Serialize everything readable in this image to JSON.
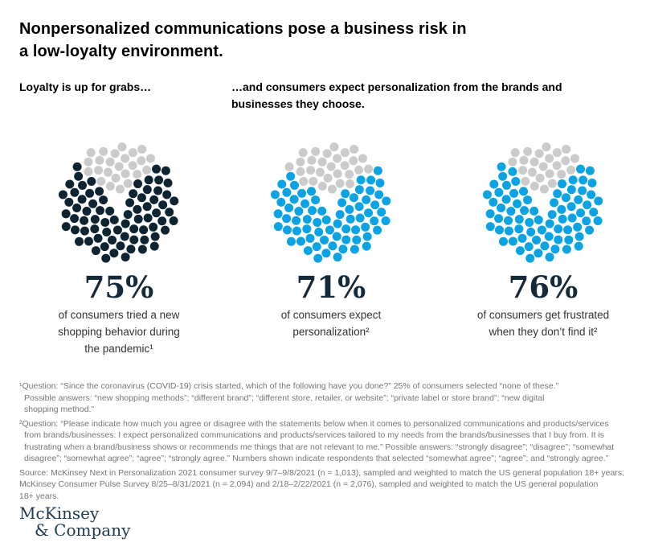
{
  "title": "Nonpersonalized communications pose a business risk in\na low-loyalty environment.",
  "subhead_left": "Loyalty is up for grabs…",
  "subhead_right": "…and consumers expect personalization from the brands and\nbusinesses they choose.",
  "chart_data": {
    "type": "pie",
    "variant": "circular-dot-matrix",
    "total_dots_per_chart": 100,
    "remainder_color": "#cbcbcb",
    "legend_position": "none",
    "charts": [
      {
        "value": 75,
        "display": "75%",
        "caption": "of consumers tried a new\nshopping behavior during\nthe pandemic¹",
        "fill_color": "#0e2433"
      },
      {
        "value": 71,
        "display": "71%",
        "caption": "of consumers expect\npersonalization²",
        "fill_color": "#0ba3e3"
      },
      {
        "value": 76,
        "display": "76%",
        "caption": "of consumers get frustrated\nwhen they don’t find it²",
        "fill_color": "#0ba3e3"
      }
    ]
  },
  "footnotes": [
    "¹Question: “Since the coronavirus (COVID-19) crisis started, which of the following have you done?” 25% of consumers selected “none of these.”\nPossible answers: “new shopping methods”; “different brand”; “different store, retailer, or website”; “private label or store brand”; “new digital\nshopping method.”",
    "²Question: “Please indicate how much you agree or disagree with the statements below when it comes to personalized communications and products/services\nfrom brands/businesses: I expect personalized communications and products/services tailored to my needs from the brands/businesses that I buy from. It is\nfrustrating when a brand/business shows or recommends me things that are not relevant to me.” Possible answers: “strongly disagree”; “disagree”; “somewhat\ndisagree”; “somewhat agree”; “agree”; “strongly agree.” Numbers shown indicate respondents that selected “somewhat agree”; “agree”; and “strongly agree.”"
  ],
  "source": "Source: McKinsey Next in Personalization 2021 consumer survey 9/7–9/8/2021 (n = 1,013), sampled and weighted to match the US general population 18+ years;\nMcKinsey Consumer Pulse Survey 8/25–8/31/2021 (n = 2,094) and 2/18–2/22/2021 (n = 2,076), sampled and weighted to match the US general population\n18+ years.",
  "logo": {
    "line1": "McKinsey",
    "line2": "& Company"
  }
}
